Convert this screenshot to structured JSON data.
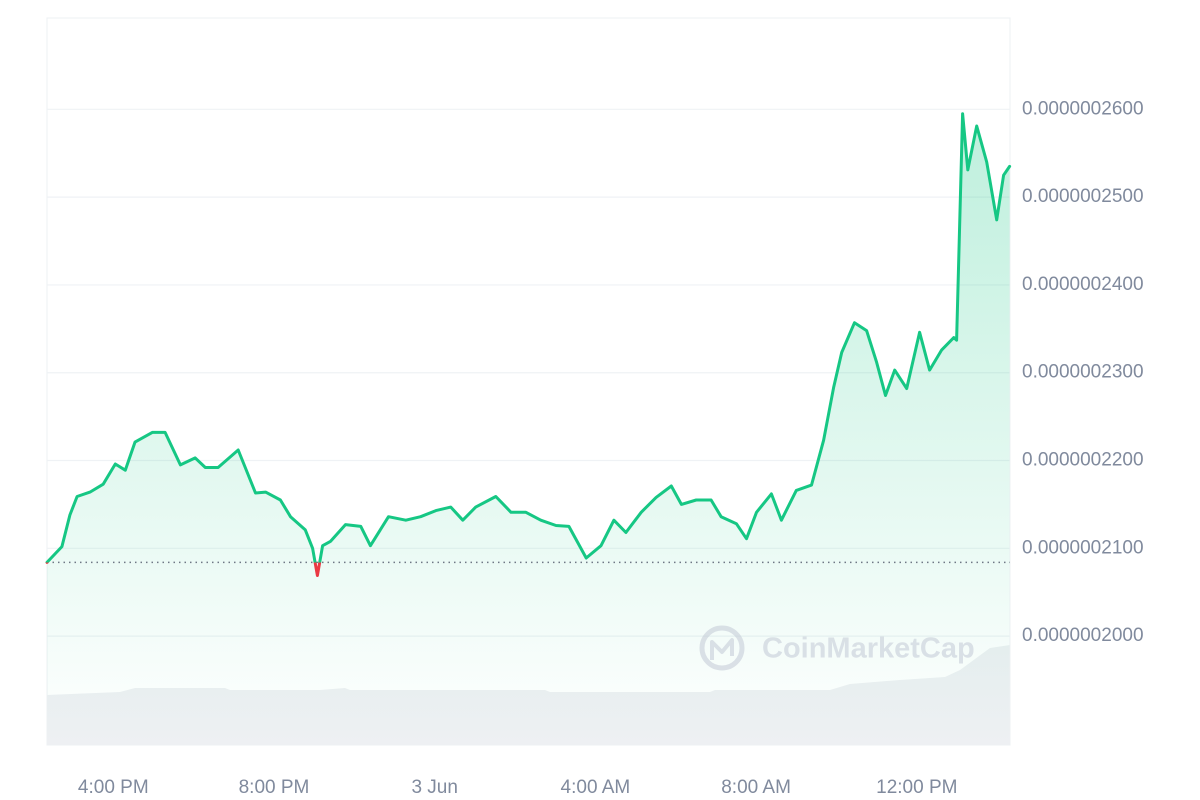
{
  "chart_data": {
    "type": "line",
    "watermark": "CoinMarketCap",
    "xlim": [
      14.35,
      38.32
    ],
    "xticks": [
      {
        "value": 16,
        "label": "4:00 PM"
      },
      {
        "value": 20,
        "label": "8:00 PM"
      },
      {
        "value": 24,
        "label": "3 Jun"
      },
      {
        "value": 28,
        "label": "4:00 AM"
      },
      {
        "value": 32,
        "label": "8:00 AM"
      },
      {
        "value": 36,
        "label": "12:00 PM"
      }
    ],
    "ylim": [
      1.876e-07,
      2.704e-07
    ],
    "yticks": [
      {
        "value": 2e-07,
        "label": "0.0000002000"
      },
      {
        "value": 2.1e-07,
        "label": "0.0000002100"
      },
      {
        "value": 2.2e-07,
        "label": "0.0000002200"
      },
      {
        "value": 2.3e-07,
        "label": "0.0000002300"
      },
      {
        "value": 2.4e-07,
        "label": "0.0000002400"
      },
      {
        "value": 2.5e-07,
        "label": "0.0000002500"
      },
      {
        "value": 2.6e-07,
        "label": "0.0000002600"
      }
    ],
    "grid": true,
    "baseline": 2.084e-07,
    "up_color": "#16c784",
    "down_color": "#ea3943",
    "x": [
      14.35,
      14.72,
      14.92,
      15.1,
      15.42,
      15.75,
      16.05,
      16.3,
      16.54,
      16.97,
      17.29,
      17.67,
      18.04,
      18.29,
      18.61,
      19.11,
      19.54,
      19.79,
      20.16,
      20.41,
      20.78,
      20.96,
      21.08,
      21.21,
      21.41,
      21.78,
      22.16,
      22.4,
      22.85,
      23.28,
      23.65,
      24.03,
      24.4,
      24.7,
      25.02,
      25.52,
      25.9,
      26.27,
      26.64,
      27.02,
      27.34,
      27.77,
      28.14,
      28.46,
      28.76,
      29.14,
      29.51,
      29.89,
      30.14,
      30.51,
      30.88,
      31.13,
      31.51,
      31.76,
      32.01,
      32.38,
      32.63,
      33.0,
      33.38,
      33.68,
      33.93,
      34.13,
      34.45,
      34.75,
      35.0,
      35.22,
      35.45,
      35.75,
      36.07,
      36.32,
      36.62,
      36.92,
      36.99,
      37.14,
      37.27,
      37.49,
      37.74,
      37.99,
      38.16,
      38.31
    ],
    "values": [
      2.084e-07,
      2.102e-07,
      2.138e-07,
      2.159e-07,
      2.164e-07,
      2.173e-07,
      2.196e-07,
      2.189e-07,
      2.221e-07,
      2.232e-07,
      2.232e-07,
      2.195e-07,
      2.203e-07,
      2.192e-07,
      2.192e-07,
      2.212e-07,
      2.163e-07,
      2.164e-07,
      2.155e-07,
      2.136e-07,
      2.121e-07,
      2.1e-07,
      2.069e-07,
      2.103e-07,
      2.108e-07,
      2.127e-07,
      2.125e-07,
      2.103e-07,
      2.136e-07,
      2.132e-07,
      2.136e-07,
      2.143e-07,
      2.147e-07,
      2.132e-07,
      2.147e-07,
      2.159e-07,
      2.141e-07,
      2.141e-07,
      2.132e-07,
      2.126e-07,
      2.125e-07,
      2.089e-07,
      2.103e-07,
      2.132e-07,
      2.118e-07,
      2.141e-07,
      2.158e-07,
      2.171e-07,
      2.15e-07,
      2.155e-07,
      2.155e-07,
      2.136e-07,
      2.128e-07,
      2.111e-07,
      2.141e-07,
      2.162e-07,
      2.132e-07,
      2.166e-07,
      2.172e-07,
      2.223e-07,
      2.283e-07,
      2.323e-07,
      2.357e-07,
      2.348e-07,
      2.312e-07,
      2.274e-07,
      2.303e-07,
      2.282e-07,
      2.346e-07,
      2.303e-07,
      2.326e-07,
      2.34e-07,
      2.337e-07,
      2.595e-07,
      2.531e-07,
      2.581e-07,
      2.54e-07,
      2.474e-07,
      2.525e-07,
      2.535e-07
    ]
  }
}
